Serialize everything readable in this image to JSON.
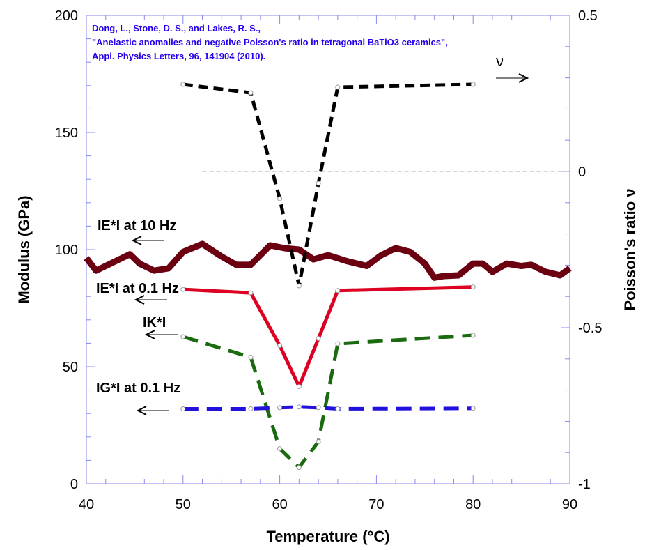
{
  "chart_data": {
    "type": "line",
    "xlabel": "Temperature (°C)",
    "xlabel_parts": {
      "pre": "Temperature (",
      "sup": "o",
      "post": "C)"
    },
    "ylabel": "Modulus (GPa)",
    "y2label": "Poisson's ratio ν",
    "xlim": [
      40,
      90
    ],
    "ylim": [
      0,
      200
    ],
    "y2lim": [
      -1,
      0.5
    ],
    "xticks": [
      "40",
      "50",
      "60",
      "70",
      "80",
      "90"
    ],
    "yticks": [
      "0",
      "50",
      "100",
      "150",
      "200"
    ],
    "y2ticks": [
      "-1",
      "-0.5",
      "0",
      "0.5"
    ],
    "citation": [
      "Dong, L., Stone, D. S., and Lakes, R. S.,",
      "\"Anelastic anomalies and negative Poisson's ratio in tetragonal BaTiO3 ceramics\",",
      "Appl. Physics Letters, 96, 141904 (2010)."
    ],
    "citation_color": "#2200ee",
    "axis_color": "#8888ee",
    "zero_line_color": "#aaaaaa",
    "series": [
      {
        "name": "IE*I  at 10 Hz",
        "axis": "left",
        "color": "#6b0010",
        "style": "thick",
        "x": [
          40,
          41,
          42.5,
          44.5,
          45.5,
          47,
          48.5,
          50,
          52,
          54,
          55.5,
          57,
          59,
          60.5,
          62,
          63.5,
          65,
          67,
          69,
          70.5,
          72,
          73.5,
          75,
          76,
          77,
          78.5,
          80,
          81,
          82,
          83.5,
          85,
          86,
          87.5,
          89,
          90
        ],
        "y": [
          96.4,
          91,
          94,
          98,
          94,
          91,
          92,
          99,
          102.4,
          97,
          93.5,
          93.5,
          101.8,
          100.6,
          100,
          95.8,
          97.6,
          95,
          93,
          97.6,
          100.6,
          99,
          94,
          88,
          88.7,
          89,
          94,
          94,
          90.5,
          94,
          93,
          93.5,
          90.5,
          89,
          92
        ]
      },
      {
        "name": "IE*I  at 0.1 Hz",
        "axis": "left",
        "color": "#dd0022",
        "style": "solid",
        "x": [
          50,
          57,
          60,
          62,
          64,
          66,
          80
        ],
        "y": [
          83,
          81.5,
          59,
          41.5,
          62,
          82.5,
          84
        ]
      },
      {
        "name": "IK*I",
        "axis": "left",
        "color": "#1a6a10",
        "style": "dashed",
        "x": [
          50,
          57,
          60,
          62,
          64,
          66,
          80
        ],
        "y": [
          62.8,
          54,
          15,
          7,
          18,
          59.8,
          63.4
        ]
      },
      {
        "name": "IG*I at 0.1 Hz",
        "axis": "left",
        "color": "#2211dd",
        "style": "dashed",
        "x": [
          50,
          57,
          60,
          62,
          64,
          66,
          80
        ],
        "y": [
          32,
          32,
          32.5,
          32.8,
          32.5,
          32,
          32.2
        ]
      },
      {
        "name": "ν",
        "axis": "right",
        "color": "#000000",
        "style": "dashed",
        "x": [
          50,
          57,
          60,
          62,
          64,
          66,
          80
        ],
        "y": [
          0.279,
          0.252,
          -0.087,
          -0.366,
          -0.038,
          0.27,
          0.279
        ]
      }
    ]
  }
}
